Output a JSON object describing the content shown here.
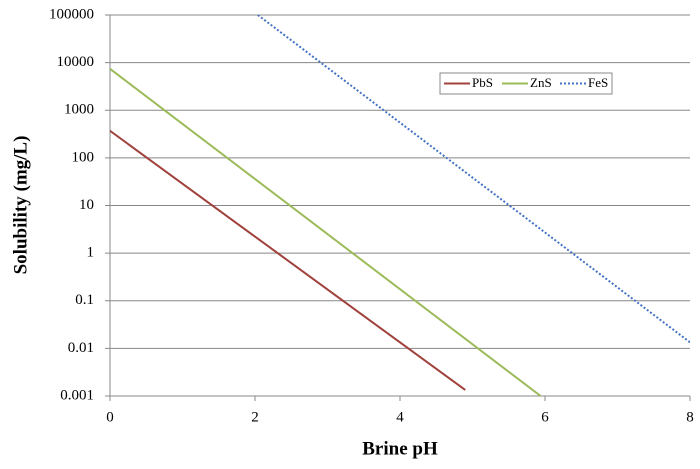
{
  "chart_data": {
    "type": "line",
    "xlabel": "Brine pH",
    "ylabel": "Solubility (mg/L)",
    "xlim": [
      0,
      8
    ],
    "xticks": [
      0,
      2,
      4,
      6,
      8
    ],
    "ylim": [
      0.001,
      100000
    ],
    "yticks": [
      0.001,
      0.01,
      0.1,
      1,
      10,
      100,
      1000,
      10000,
      100000
    ],
    "yscale": "log",
    "grid": true,
    "legend": "upper right",
    "series": [
      {
        "name": "PbS",
        "color": "#a0413c",
        "style": "solid",
        "x": [
          0,
          4.9
        ],
        "values": [
          370,
          0.00134
        ]
      },
      {
        "name": "ZnS",
        "color": "#9bbb59",
        "style": "solid",
        "x": [
          0,
          5.94
        ],
        "values": [
          7400,
          0.001
        ]
      },
      {
        "name": "FeS",
        "color": "#4472c4",
        "style": "dotted",
        "x": [
          2.04,
          8
        ],
        "values": [
          100000,
          0.0134
        ]
      }
    ]
  }
}
